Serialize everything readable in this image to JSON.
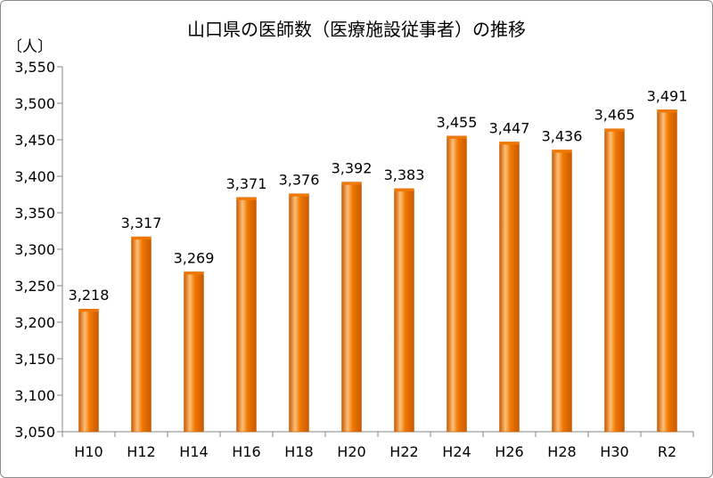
{
  "chart_data": {
    "type": "bar",
    "title": "山口県の医師数（医療施設従事者）の推移",
    "unit_label": "〔人〕",
    "categories": [
      "H10",
      "H12",
      "H14",
      "H16",
      "H18",
      "H20",
      "H22",
      "H24",
      "H26",
      "H28",
      "H30",
      "R2"
    ],
    "values": [
      3218,
      3317,
      3269,
      3371,
      3376,
      3392,
      3383,
      3455,
      3447,
      3436,
      3465,
      3491
    ],
    "value_labels": [
      "3,218",
      "3,317",
      "3,269",
      "3,371",
      "3,376",
      "3,392",
      "3,383",
      "3,455",
      "3,447",
      "3,436",
      "3,465",
      "3,491"
    ],
    "y_ticks": [
      3050,
      3100,
      3150,
      3200,
      3250,
      3300,
      3350,
      3400,
      3450,
      3500,
      3550
    ],
    "y_tick_labels": [
      "3,050",
      "3,100",
      "3,150",
      "3,200",
      "3,250",
      "3,300",
      "3,350",
      "3,400",
      "3,450",
      "3,500",
      "3,550"
    ],
    "ylim": [
      3050,
      3550
    ],
    "grid": false,
    "legend": "none",
    "bar_color": "#f07800",
    "bar_highlight_color": "#ffc078",
    "bar_shadow_color": "#c85a00"
  }
}
